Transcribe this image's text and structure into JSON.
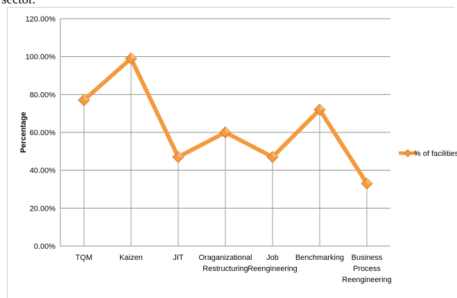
{
  "top_text": "sector.",
  "chart_data": {
    "type": "line",
    "title": "",
    "xlabel": "",
    "ylabel": "Percentage",
    "ylim": [
      0,
      1.2
    ],
    "yticks": [
      "0.00%",
      "20.00%",
      "40.00%",
      "60.00%",
      "80.00%",
      "100.00%",
      "120.00%"
    ],
    "grid": true,
    "legend_position": "right",
    "categories": [
      [
        "TQM"
      ],
      [
        "Kaizen"
      ],
      [
        "JIT"
      ],
      [
        "Oraganizational",
        "Restructuring"
      ],
      [
        "Job",
        "Reengineering"
      ],
      [
        "Benchmarking"
      ],
      [
        "Business",
        "Process",
        "Reengineering"
      ]
    ],
    "series": [
      {
        "name": "% of facilities",
        "values": [
          0.77,
          0.99,
          0.47,
          0.6,
          0.47,
          0.72,
          0.33
        ],
        "color": "#F39A3E"
      }
    ],
    "colors": {
      "line": "#F39A3E",
      "marker_dark": "#D9782B",
      "grid": "#8c8c8c",
      "drop": "#999999"
    }
  }
}
